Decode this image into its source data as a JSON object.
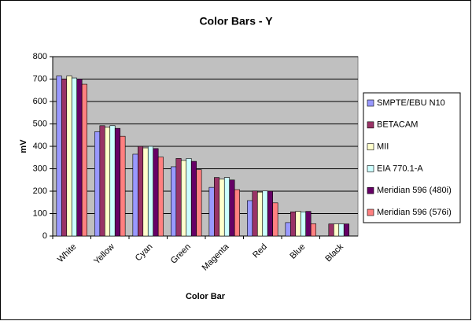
{
  "chart_data": {
    "type": "bar",
    "title": "Color Bars - Y",
    "x_label": "Color Bar",
    "y_label": "mV",
    "categories": [
      "White",
      "Yellow",
      "Cyan",
      "Green",
      "Magenta",
      "Red",
      "Blue",
      "Black"
    ],
    "series": [
      {
        "name": "SMPTE/EBU N10",
        "color": "#9999ff",
        "values": [
          714,
          465,
          365,
          309,
          217,
          158,
          60,
          0
        ]
      },
      {
        "name": "BETACAM",
        "color": "#993366",
        "values": [
          700,
          492,
          400,
          346,
          261,
          201,
          108,
          54
        ]
      },
      {
        "name": "MII",
        "color": "#ffffcc",
        "values": [
          714,
          485,
          393,
          337,
          254,
          196,
          110,
          54
        ]
      },
      {
        "name": "EIA 770.1-A",
        "color": "#ccffff",
        "values": [
          705,
          492,
          400,
          346,
          261,
          201,
          108,
          54
        ]
      },
      {
        "name": "Meridian 596 (480i)",
        "color": "#660066",
        "values": [
          700,
          480,
          390,
          333,
          250,
          200,
          110,
          54
        ]
      },
      {
        "name": "Meridian 596 (576i)",
        "color": "#ff8080",
        "values": [
          677,
          445,
          352,
          296,
          207,
          148,
          55,
          0
        ]
      }
    ],
    "ylim": [
      0,
      800
    ],
    "yticks": [
      0,
      100,
      200,
      300,
      400,
      500,
      600,
      700,
      800
    ],
    "grid": true,
    "legend": "right",
    "plot_background": "#c0c0c0"
  }
}
